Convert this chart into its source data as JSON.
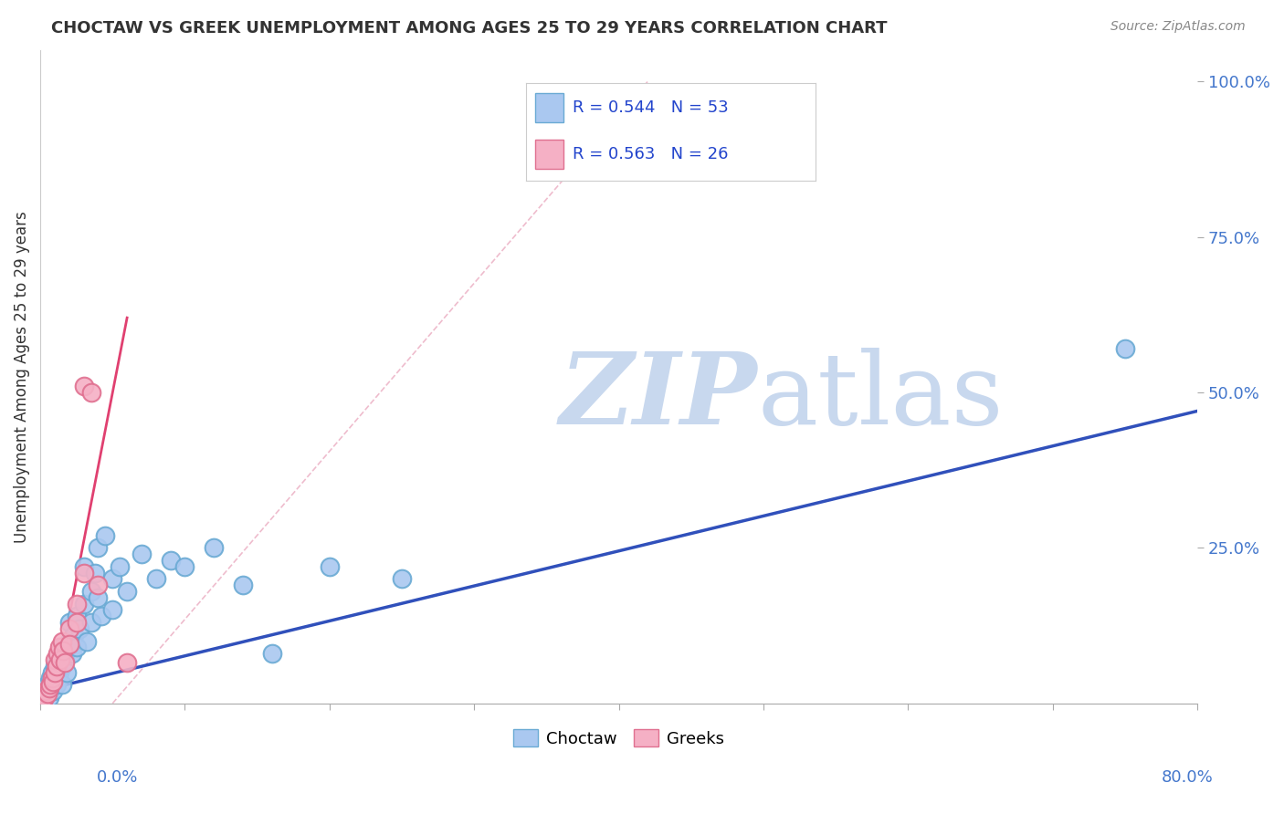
{
  "title": "CHOCTAW VS GREEK UNEMPLOYMENT AMONG AGES 25 TO 29 YEARS CORRELATION CHART",
  "source": "Source: ZipAtlas.com",
  "ylabel": "Unemployment Among Ages 25 to 29 years",
  "ytick_labels": [
    "100.0%",
    "75.0%",
    "50.0%",
    "25.0%"
  ],
  "ytick_values": [
    1.0,
    0.75,
    0.5,
    0.25
  ],
  "xlim": [
    0.0,
    0.8
  ],
  "ylim": [
    0.0,
    1.05
  ],
  "choctaw_color": "#aac8f0",
  "choctaw_edge": "#6aaad4",
  "greeks_color": "#f5b0c5",
  "greeks_edge": "#e07090",
  "trendline_choctaw": "#3050bb",
  "trendline_greeks": "#e04070",
  "watermark_zip_color": "#c8d8ee",
  "watermark_atlas_color": "#c8d8ee",
  "background": "#ffffff",
  "choctaw_scatter": [
    [
      0.002,
      0.005
    ],
    [
      0.003,
      0.01
    ],
    [
      0.004,
      0.015
    ],
    [
      0.005,
      0.02
    ],
    [
      0.005,
      0.03
    ],
    [
      0.006,
      0.01
    ],
    [
      0.007,
      0.025
    ],
    [
      0.007,
      0.04
    ],
    [
      0.008,
      0.03
    ],
    [
      0.008,
      0.05
    ],
    [
      0.009,
      0.02
    ],
    [
      0.01,
      0.04
    ],
    [
      0.01,
      0.06
    ],
    [
      0.011,
      0.03
    ],
    [
      0.012,
      0.07
    ],
    [
      0.013,
      0.05
    ],
    [
      0.014,
      0.08
    ],
    [
      0.015,
      0.06
    ],
    [
      0.015,
      0.03
    ],
    [
      0.016,
      0.09
    ],
    [
      0.017,
      0.07
    ],
    [
      0.018,
      0.05
    ],
    [
      0.02,
      0.1
    ],
    [
      0.02,
      0.13
    ],
    [
      0.022,
      0.08
    ],
    [
      0.023,
      0.11
    ],
    [
      0.025,
      0.09
    ],
    [
      0.025,
      0.14
    ],
    [
      0.027,
      0.12
    ],
    [
      0.03,
      0.22
    ],
    [
      0.03,
      0.16
    ],
    [
      0.032,
      0.1
    ],
    [
      0.035,
      0.18
    ],
    [
      0.035,
      0.13
    ],
    [
      0.038,
      0.21
    ],
    [
      0.04,
      0.25
    ],
    [
      0.04,
      0.17
    ],
    [
      0.042,
      0.14
    ],
    [
      0.045,
      0.27
    ],
    [
      0.05,
      0.2
    ],
    [
      0.05,
      0.15
    ],
    [
      0.055,
      0.22
    ],
    [
      0.06,
      0.18
    ],
    [
      0.07,
      0.24
    ],
    [
      0.08,
      0.2
    ],
    [
      0.09,
      0.23
    ],
    [
      0.1,
      0.22
    ],
    [
      0.12,
      0.25
    ],
    [
      0.14,
      0.19
    ],
    [
      0.16,
      0.08
    ],
    [
      0.2,
      0.22
    ],
    [
      0.25,
      0.2
    ],
    [
      0.75,
      0.57
    ]
  ],
  "greeks_scatter": [
    [
      0.002,
      0.005
    ],
    [
      0.003,
      0.01
    ],
    [
      0.004,
      0.02
    ],
    [
      0.005,
      0.015
    ],
    [
      0.006,
      0.025
    ],
    [
      0.007,
      0.03
    ],
    [
      0.008,
      0.04
    ],
    [
      0.009,
      0.035
    ],
    [
      0.01,
      0.05
    ],
    [
      0.01,
      0.07
    ],
    [
      0.011,
      0.06
    ],
    [
      0.012,
      0.08
    ],
    [
      0.013,
      0.09
    ],
    [
      0.014,
      0.07
    ],
    [
      0.015,
      0.1
    ],
    [
      0.016,
      0.085
    ],
    [
      0.017,
      0.065
    ],
    [
      0.02,
      0.12
    ],
    [
      0.02,
      0.095
    ],
    [
      0.025,
      0.16
    ],
    [
      0.025,
      0.13
    ],
    [
      0.03,
      0.51
    ],
    [
      0.03,
      0.21
    ],
    [
      0.035,
      0.5
    ],
    [
      0.04,
      0.19
    ],
    [
      0.06,
      0.065
    ]
  ],
  "trendline_choctaw_points": [
    [
      0.0,
      0.02
    ],
    [
      0.8,
      0.47
    ]
  ],
  "trendline_greeks_points": [
    [
      0.0,
      -0.1
    ],
    [
      0.06,
      0.62
    ]
  ],
  "trendline_dashed_points": [
    [
      0.05,
      0.0
    ],
    [
      0.42,
      1.0
    ]
  ]
}
